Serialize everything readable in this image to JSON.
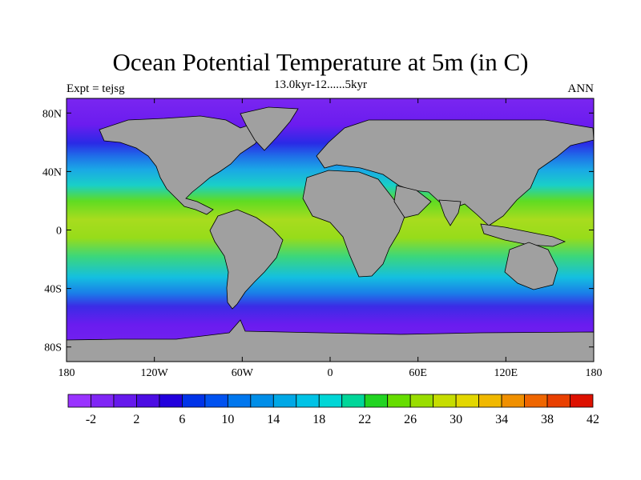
{
  "title": "Ocean Potential Temperature at 5m (in C)",
  "subtitle": "13.0kyr-12......5kyr",
  "left_label": "Expt = tejsg",
  "right_label": "ANN",
  "map": {
    "lon_range": [
      -180,
      180
    ],
    "lat_range": [
      -90,
      90
    ],
    "land_color": "#a0a0a0",
    "coastline_color": "#000000",
    "x_ticks": [
      {
        "value": -180,
        "label": "180"
      },
      {
        "value": -120,
        "label": "120W"
      },
      {
        "value": -60,
        "label": "60W"
      },
      {
        "value": 0,
        "label": "0"
      },
      {
        "value": 60,
        "label": "60E"
      },
      {
        "value": 120,
        "label": "120E"
      },
      {
        "value": 180,
        "label": "180"
      }
    ],
    "y_ticks": [
      {
        "value": 80,
        "label": "80N"
      },
      {
        "value": 40,
        "label": "40N"
      },
      {
        "value": 0,
        "label": "0"
      },
      {
        "value": -40,
        "label": "40S"
      },
      {
        "value": -80,
        "label": "80S"
      }
    ]
  },
  "colorbar": {
    "colors": [
      "#9933ff",
      "#8026f5",
      "#6619ec",
      "#4c0de3",
      "#2200dd",
      "#0033e8",
      "#0052f0",
      "#0077ee",
      "#008ee8",
      "#00a8e6",
      "#00c3e6",
      "#00d6d6",
      "#00d699",
      "#22d422",
      "#66dd00",
      "#99dd00",
      "#c6dd00",
      "#e3d700",
      "#f0b800",
      "#f09000",
      "#ef6600",
      "#e94000",
      "#dd1100"
    ],
    "tick_labels": [
      "-2",
      "2",
      "6",
      "10",
      "14",
      "18",
      "22",
      "26",
      "30",
      "34",
      "38",
      "42"
    ],
    "tick_positions": [
      1,
      3,
      5,
      7,
      9,
      11,
      13,
      15,
      17,
      19,
      21,
      23
    ]
  }
}
